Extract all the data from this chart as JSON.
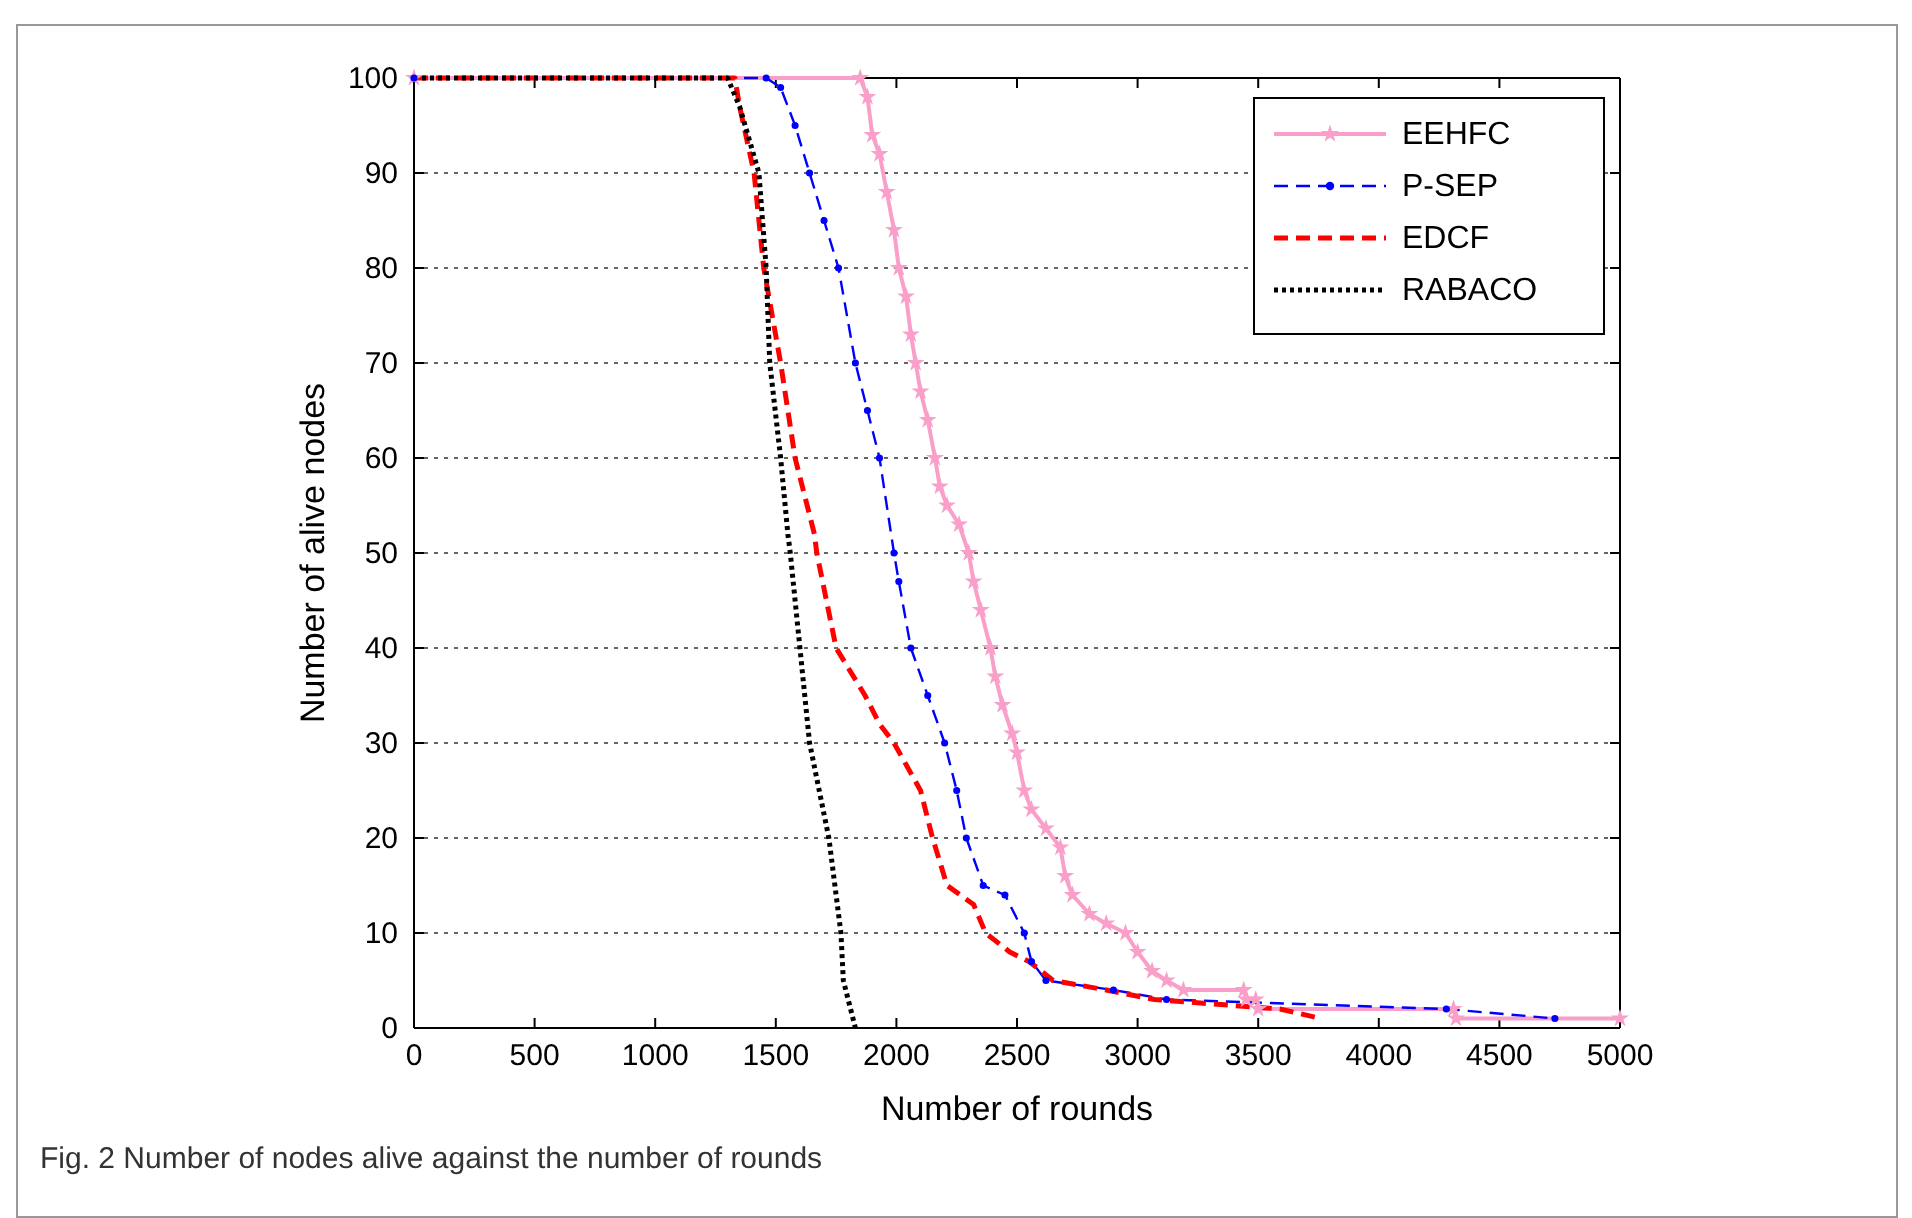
{
  "chart_data": {
    "type": "line",
    "xlabel": "Number of rounds",
    "ylabel": "Number of alive nodes",
    "xlim": [
      0,
      5000
    ],
    "ylim": [
      0,
      100
    ],
    "xticks": [
      0,
      500,
      1000,
      1500,
      2000,
      2500,
      3000,
      3500,
      4000,
      4500,
      5000
    ],
    "yticks": [
      0,
      10,
      20,
      30,
      40,
      50,
      60,
      70,
      80,
      90,
      100
    ],
    "grid": "y",
    "legend": "top right",
    "annotations": [
      "Fig. 2  Number of nodes alive against the number of rounds"
    ],
    "series": [
      {
        "name": "EEHFC",
        "color": "#f99fc9",
        "marker": "star",
        "line_style": "solid",
        "x": [
          0,
          1850,
          1880,
          1900,
          1930,
          1960,
          1990,
          2010,
          2040,
          2060,
          2080,
          2100,
          2130,
          2160,
          2180,
          2210,
          2260,
          2300,
          2320,
          2350,
          2390,
          2410,
          2440,
          2480,
          2500,
          2530,
          2560,
          2620,
          2680,
          2700,
          2730,
          2800,
          2870,
          2950,
          3000,
          3060,
          3120,
          3190,
          3440,
          3450,
          3490,
          3500,
          4310,
          4320,
          5000
        ],
        "values": [
          100,
          100,
          98,
          94,
          92,
          88,
          84,
          80,
          77,
          73,
          70,
          67,
          64,
          60,
          57,
          55,
          53,
          50,
          47,
          44,
          40,
          37,
          34,
          31,
          29,
          25,
          23,
          21,
          19,
          16,
          14,
          12,
          11,
          10,
          8,
          6,
          5,
          4,
          4,
          3,
          3,
          2,
          2,
          1,
          1
        ]
      },
      {
        "name": "P-SEP",
        "color": "#0000ff",
        "marker": "circle",
        "line_style": "dashed",
        "x": [
          0,
          1460,
          1520,
          1580,
          1640,
          1700,
          1760,
          1830,
          1880,
          1930,
          1990,
          2010,
          2060,
          2130,
          2200,
          2250,
          2290,
          2360,
          2450,
          2530,
          2560,
          2620,
          2900,
          3120,
          4280,
          4730
        ],
        "values": [
          100,
          100,
          99,
          95,
          90,
          85,
          80,
          70,
          65,
          60,
          50,
          47,
          40,
          35,
          30,
          25,
          20,
          15,
          14,
          10,
          7,
          5,
          4,
          3,
          2,
          1
        ]
      },
      {
        "name": "EDCF",
        "color": "#ff0000",
        "marker": "none",
        "line_style": "dashed",
        "x": [
          0,
          1330,
          1350,
          1410,
          1450,
          1520,
          1580,
          1660,
          1670,
          1750,
          1870,
          1930,
          1990,
          2100,
          2150,
          2210,
          2320,
          2370,
          2470,
          2550,
          2650,
          2870,
          3070,
          3590,
          3760
        ],
        "values": [
          100,
          100,
          97,
          90,
          80,
          70,
          60,
          52,
          50,
          40,
          35,
          32,
          30,
          25,
          20,
          15,
          13,
          10,
          8,
          7,
          5,
          4,
          3,
          2,
          1
        ]
      },
      {
        "name": "RABACO",
        "color": "#000000",
        "marker": "none",
        "line_style": "dotted",
        "x": [
          0,
          1300,
          1350,
          1430,
          1460,
          1475,
          1520,
          1550,
          1560,
          1600,
          1640,
          1720,
          1770,
          1780,
          1820,
          1830
        ],
        "values": [
          100,
          100,
          97,
          90,
          80,
          70,
          60,
          52,
          50,
          40,
          30,
          20,
          10,
          5,
          1,
          0
        ]
      }
    ]
  }
}
